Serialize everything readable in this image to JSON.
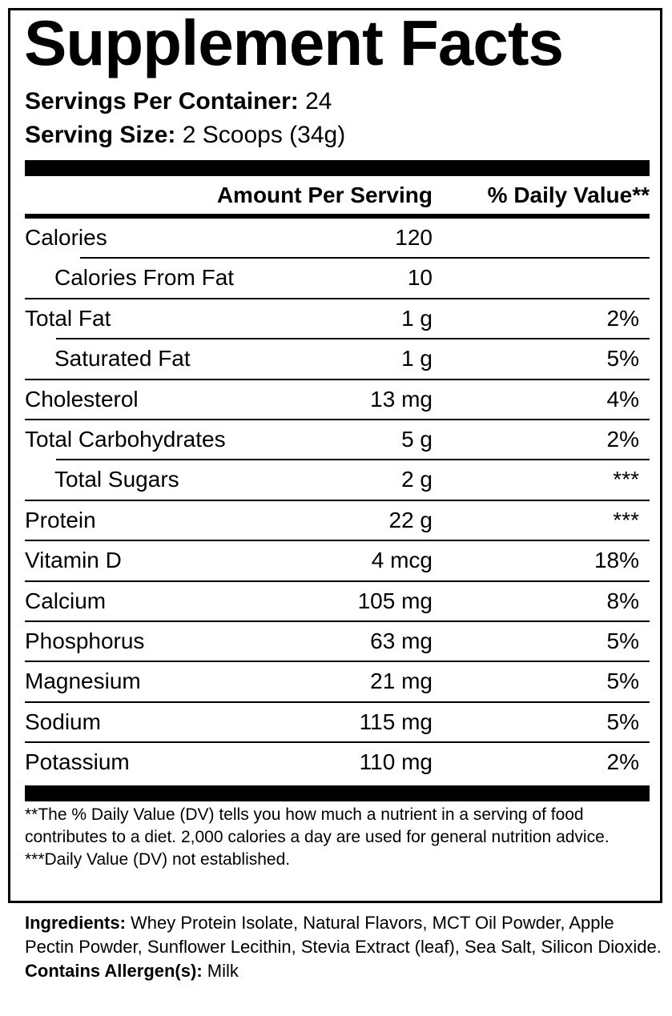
{
  "title": "Supplement Facts",
  "servings": {
    "label": "Servings Per Container:",
    "value": "24"
  },
  "serving_size": {
    "label": "Serving Size:",
    "value": "2 Scoops (34g)"
  },
  "header": {
    "amount": "Amount Per Serving",
    "dv": "% Daily Value**"
  },
  "rows": [
    {
      "name": "Calories",
      "amount": "120"
    },
    {
      "name": "Calories From Fat",
      "amount": "10",
      "indent": true
    },
    {
      "name": "Total Fat",
      "amount": "1 g",
      "dv": "2%"
    },
    {
      "name": "Saturated Fat",
      "amount": "1 g",
      "dv": "5%",
      "indent": true
    },
    {
      "name": "Cholesterol",
      "amount": "13 mg",
      "dv": "4%"
    },
    {
      "name": "Total Carbohydrates",
      "amount": "5 g",
      "dv": "2%"
    },
    {
      "name": "Total Sugars",
      "amount": "2 g",
      "dv": "***",
      "indent": true
    },
    {
      "name": "Protein",
      "amount": "22 g",
      "dv": "***"
    },
    {
      "name": "Vitamin D",
      "amount": "4 mcg",
      "dv": "18%"
    },
    {
      "name": "Calcium",
      "amount": "105 mg",
      "dv": "8%"
    },
    {
      "name": "Phosphorus",
      "amount": "63 mg",
      "dv": "5%"
    },
    {
      "name": "Magnesium",
      "amount": "21 mg",
      "dv": "5%"
    },
    {
      "name": "Sodium",
      "amount": "115 mg",
      "dv": "5%"
    },
    {
      "name": "Potassium",
      "amount": "110 mg",
      "dv": "2%"
    }
  ],
  "footnotes": [
    "**The % Daily Value (DV) tells you how much a nutrient in a serving of food contributes to a diet. 2,000 calories a day are used for general nutrition advice.",
    "***Daily Value (DV) not established."
  ],
  "ingredients": {
    "label": "Ingredients:",
    "text": "Whey Protein Isolate, Natural Flavors, MCT Oil Powder, Apple Pectin Powder, Sunflower Lecithin, Stevia Extract (leaf), Sea Salt, Silicon Dioxide."
  },
  "allergen": {
    "label": "Contains Allergen(s):",
    "text": "Milk"
  }
}
